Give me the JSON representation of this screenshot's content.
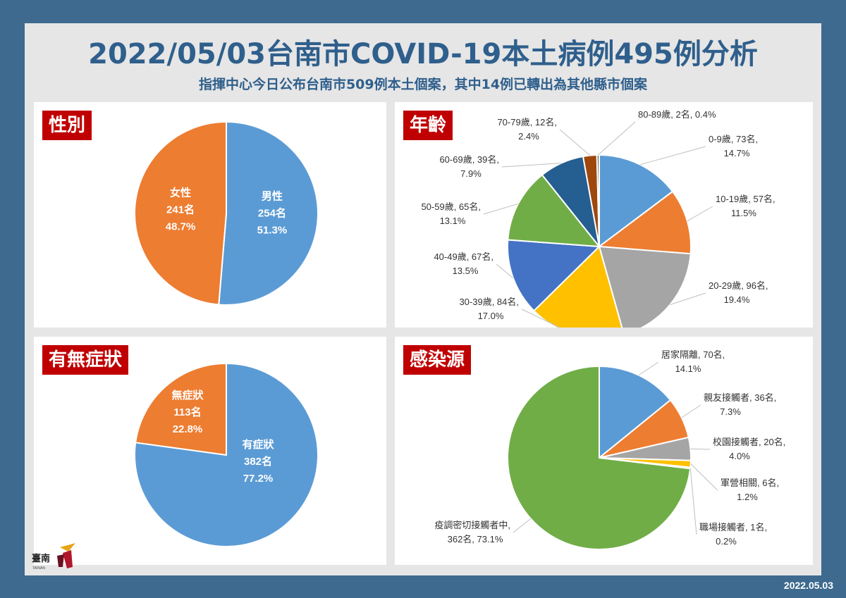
{
  "header": {
    "title": "2022/05/03台南市COVID-19本土病例495例分析",
    "subtitle": "指揮中心今日公布台南市509例本土個案，其中14例已轉出為其他縣市個案"
  },
  "footer": {
    "date": "2022.05.03"
  },
  "logo": {
    "text": "臺南",
    "sub": "TAINAN"
  },
  "chart_data": [
    {
      "id": "gender",
      "type": "pie",
      "title": "性別",
      "slices": [
        {
          "name": "男性",
          "value": 254,
          "percent": "51.3%",
          "count_label": "254名",
          "color": "#5b9bd5"
        },
        {
          "name": "女性",
          "value": 241,
          "percent": "48.7%",
          "count_label": "241名",
          "color": "#ed7d31"
        }
      ]
    },
    {
      "id": "age",
      "type": "pie",
      "title": "年齡",
      "slices": [
        {
          "name": "0-9歲",
          "value": 73,
          "line1": "0-9歲, 73名,",
          "line2": "14.7%",
          "color": "#5b9bd5"
        },
        {
          "name": "10-19歲",
          "value": 57,
          "line1": "10-19歲, 57名,",
          "line2": "11.5%",
          "color": "#ed7d31"
        },
        {
          "name": "20-29歲",
          "value": 96,
          "line1": "20-29歲, 96名,",
          "line2": "19.4%",
          "color": "#a5a5a5"
        },
        {
          "name": "30-39歲",
          "value": 84,
          "line1": "30-39歲, 84名,",
          "line2": "17.0%",
          "color": "#ffc000"
        },
        {
          "name": "40-49歲",
          "value": 67,
          "line1": "40-49歲, 67名,",
          "line2": "13.5%",
          "color": "#4472c4"
        },
        {
          "name": "50-59歲",
          "value": 65,
          "line1": "50-59歲, 65名,",
          "line2": "13.1%",
          "color": "#70ad47"
        },
        {
          "name": "60-69歲",
          "value": 39,
          "line1": "60-69歲, 39名,",
          "line2": "7.9%",
          "color": "#255e91"
        },
        {
          "name": "70-79歲",
          "value": 12,
          "line1": "70-79歲, 12名,",
          "line2": "2.4%",
          "color": "#9e480e"
        },
        {
          "name": "80-89歲",
          "value": 2,
          "line1": "80-89歲, 2名, 0.4%",
          "line2": "",
          "color": "#636363"
        }
      ]
    },
    {
      "id": "symptom",
      "type": "pie",
      "title": "有無症狀",
      "slices": [
        {
          "name": "有症狀",
          "value": 382,
          "percent": "77.2%",
          "count_label": "382名",
          "color": "#5b9bd5"
        },
        {
          "name": "無症狀",
          "value": 113,
          "percent": "22.8%",
          "count_label": "113名",
          "color": "#ed7d31"
        }
      ]
    },
    {
      "id": "source",
      "type": "pie",
      "title": "感染源",
      "slices": [
        {
          "name": "居家隔離",
          "value": 70,
          "line1": "居家隔離, 70名,",
          "line2": "14.1%",
          "color": "#5b9bd5"
        },
        {
          "name": "親友接觸者",
          "value": 36,
          "line1": "親友接觸者, 36名,",
          "line2": "7.3%",
          "color": "#ed7d31"
        },
        {
          "name": "校園接觸者",
          "value": 20,
          "line1": "校園接觸者, 20名,",
          "line2": "4.0%",
          "color": "#a5a5a5"
        },
        {
          "name": "軍營相關",
          "value": 6,
          "line1": "軍營相關, 6名,",
          "line2": "1.2%",
          "color": "#ffc000"
        },
        {
          "name": "職場接觸者",
          "value": 1,
          "line1": "職場接觸者, 1名,",
          "line2": "0.2%",
          "color": "#4472c4"
        },
        {
          "name": "疫調密切接觸者中",
          "value": 362,
          "line1": "疫調密切接觸者中,",
          "line2": "362名, 73.1%",
          "color": "#70ad47"
        }
      ]
    }
  ]
}
